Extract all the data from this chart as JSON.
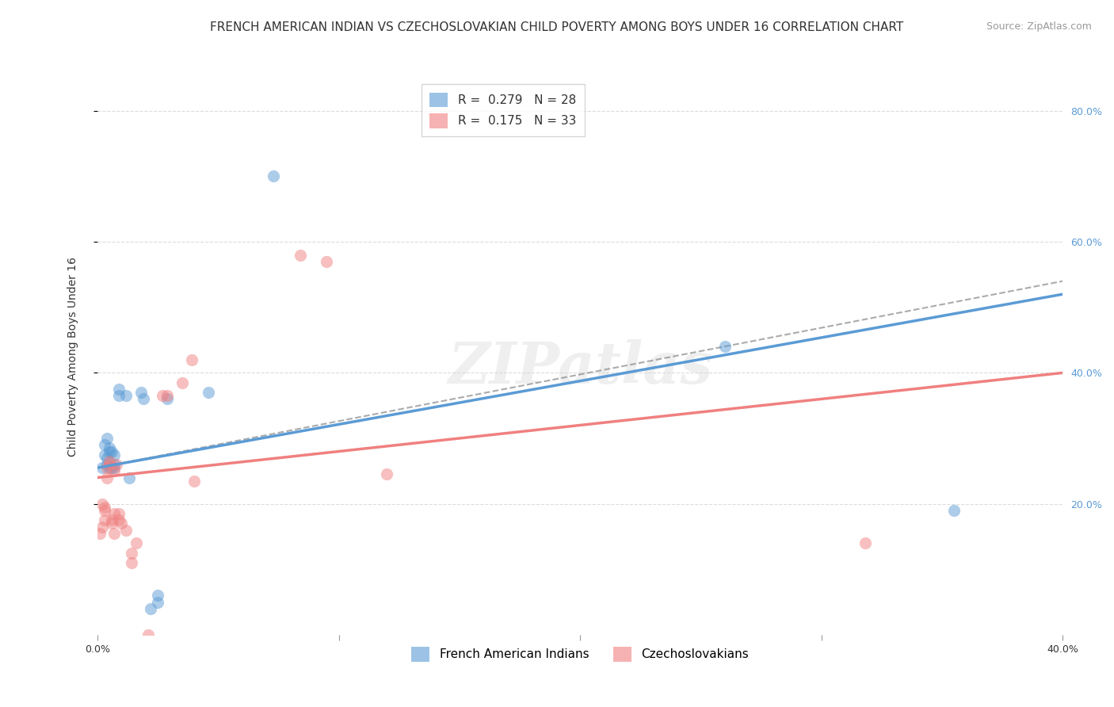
{
  "title": "FRENCH AMERICAN INDIAN VS CZECHOSLOVAKIAN CHILD POVERTY AMONG BOYS UNDER 16 CORRELATION CHART",
  "source": "Source: ZipAtlas.com",
  "xlabel": "",
  "ylabel": "Child Poverty Among Boys Under 16",
  "xlim": [
    0.0,
    0.4
  ],
  "ylim": [
    0.0,
    0.85
  ],
  "xticks": [
    0.0,
    0.1,
    0.2,
    0.3,
    0.4
  ],
  "xtick_labels": [
    "0.0%",
    "",
    "",
    "",
    "40.0%"
  ],
  "yticks_right": [
    0.2,
    0.4,
    0.6,
    0.8
  ],
  "ytick_labels_right": [
    "20.0%",
    "40.0%",
    "60.0%",
    "80.0%"
  ],
  "legend_entries": [
    {
      "label": "French American Indians",
      "color": "#7EB6E8"
    },
    {
      "label": "Czechoslovakians",
      "color": "#F4A0B0"
    }
  ],
  "blue_R": "0.279",
  "blue_N": "28",
  "pink_R": "0.175",
  "pink_N": "33",
  "blue_dots": [
    [
      0.002,
      0.255
    ],
    [
      0.003,
      0.275
    ],
    [
      0.003,
      0.29
    ],
    [
      0.004,
      0.26
    ],
    [
      0.004,
      0.27
    ],
    [
      0.004,
      0.3
    ],
    [
      0.005,
      0.255
    ],
    [
      0.005,
      0.28
    ],
    [
      0.005,
      0.285
    ],
    [
      0.006,
      0.255
    ],
    [
      0.006,
      0.28
    ],
    [
      0.007,
      0.255
    ],
    [
      0.007,
      0.26
    ],
    [
      0.007,
      0.275
    ],
    [
      0.009,
      0.365
    ],
    [
      0.009,
      0.375
    ],
    [
      0.012,
      0.365
    ],
    [
      0.013,
      0.24
    ],
    [
      0.018,
      0.37
    ],
    [
      0.019,
      0.36
    ],
    [
      0.022,
      0.04
    ],
    [
      0.025,
      0.05
    ],
    [
      0.025,
      0.06
    ],
    [
      0.029,
      0.36
    ],
    [
      0.046,
      0.37
    ],
    [
      0.073,
      0.7
    ],
    [
      0.26,
      0.44
    ],
    [
      0.355,
      0.19
    ]
  ],
  "pink_dots": [
    [
      0.001,
      0.155
    ],
    [
      0.002,
      0.165
    ],
    [
      0.002,
      0.2
    ],
    [
      0.003,
      0.175
    ],
    [
      0.003,
      0.19
    ],
    [
      0.003,
      0.195
    ],
    [
      0.004,
      0.24
    ],
    [
      0.004,
      0.255
    ],
    [
      0.005,
      0.26
    ],
    [
      0.005,
      0.265
    ],
    [
      0.006,
      0.17
    ],
    [
      0.006,
      0.175
    ],
    [
      0.007,
      0.155
    ],
    [
      0.007,
      0.185
    ],
    [
      0.007,
      0.25
    ],
    [
      0.008,
      0.26
    ],
    [
      0.009,
      0.175
    ],
    [
      0.009,
      0.185
    ],
    [
      0.01,
      0.17
    ],
    [
      0.012,
      0.16
    ],
    [
      0.014,
      0.11
    ],
    [
      0.014,
      0.125
    ],
    [
      0.016,
      0.14
    ],
    [
      0.021,
      0.0
    ],
    [
      0.027,
      0.365
    ],
    [
      0.029,
      0.365
    ],
    [
      0.035,
      0.385
    ],
    [
      0.039,
      0.42
    ],
    [
      0.04,
      0.235
    ],
    [
      0.084,
      0.58
    ],
    [
      0.095,
      0.57
    ],
    [
      0.12,
      0.245
    ],
    [
      0.318,
      0.14
    ]
  ],
  "blue_line": {
    "x0": 0.0,
    "y0": 0.255,
    "x1": 0.4,
    "y1": 0.52
  },
  "blue_dash_line": {
    "x0": 0.0,
    "y0": 0.255,
    "x1": 0.4,
    "y1": 0.52
  },
  "pink_line": {
    "x0": 0.0,
    "y0": 0.24,
    "x1": 0.4,
    "y1": 0.4
  },
  "watermark": "ZIPatlas",
  "background_color": "#ffffff",
  "grid_color": "#cccccc",
  "blue_color": "#5B9BD5",
  "pink_color": "#F08080",
  "title_fontsize": 11,
  "axis_label_fontsize": 10,
  "tick_fontsize": 9
}
